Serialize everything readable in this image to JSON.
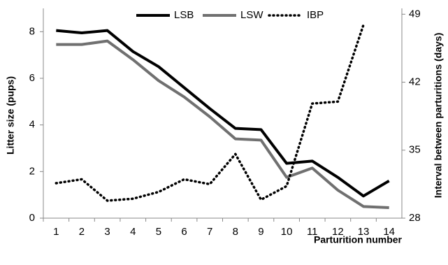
{
  "chart_data": {
    "type": "line",
    "categories": [
      "1",
      "2",
      "3",
      "4",
      "5",
      "6",
      "7",
      "8",
      "9",
      "10",
      "11",
      "12",
      "13",
      "14"
    ],
    "x_label": "Parturition number",
    "y_label": "Litter size (pups)",
    "y2_label": "Interval between parturitions (days)",
    "ylim": [
      0,
      9
    ],
    "yticks": [
      0,
      2,
      4,
      6,
      8
    ],
    "y2lim": [
      28,
      49.6
    ],
    "y2ticks": [
      28,
      35,
      42,
      49
    ],
    "series": [
      {
        "name": "LSB",
        "color": "#000000",
        "dash": "solid",
        "values": [
          8.05,
          7.95,
          8.05,
          7.15,
          6.5,
          5.6,
          4.7,
          3.85,
          3.8,
          2.35,
          2.45,
          1.75,
          0.95,
          1.6
        ]
      },
      {
        "name": "LSW",
        "color": "#707070",
        "dash": "solid",
        "values": [
          7.45,
          7.45,
          7.6,
          6.8,
          5.9,
          5.2,
          4.35,
          3.4,
          3.35,
          1.75,
          2.15,
          1.2,
          0.5,
          0.45
        ]
      },
      {
        "name": "IBP",
        "color": "#000000",
        "dash": "dotted",
        "axis": "y2",
        "values": [
          31.6,
          32.0,
          29.8,
          30.0,
          30.7,
          32.0,
          31.5,
          34.6,
          29.9,
          31.3,
          39.8,
          40.0,
          47.9,
          null
        ]
      }
    ]
  }
}
